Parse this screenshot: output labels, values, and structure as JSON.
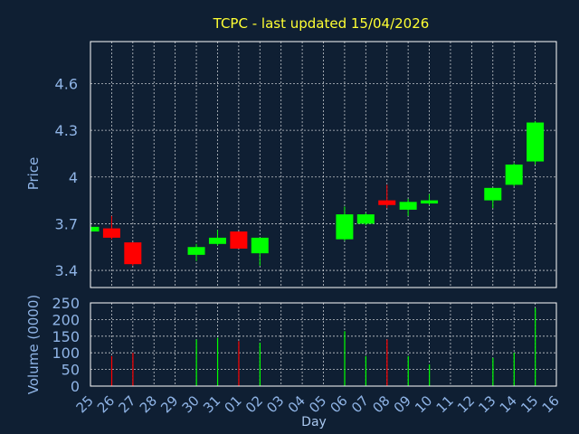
{
  "chart_data": {
    "type": "candlestick",
    "title": "TCPC - last updated 15/04/2026",
    "xlabel": "Day",
    "colors": {
      "background": "#0f1f33",
      "plot_border": "#ffffff",
      "grid": "#ffffff",
      "up": "#00ff00",
      "down": "#ff0000",
      "title": "#ffff33",
      "axis_text": "#8fb4e6"
    },
    "x_ticks": [
      "25",
      "26",
      "27",
      "28",
      "29",
      "30",
      "31",
      "01",
      "02",
      "03",
      "04",
      "05",
      "06",
      "07",
      "08",
      "09",
      "10",
      "11",
      "12",
      "13",
      "14",
      "15",
      "16"
    ],
    "price_panel": {
      "ylabel": "Price",
      "ylim": [
        3.29,
        4.87
      ],
      "y_ticks": [
        "3.4",
        "3.7",
        "4",
        "4.3",
        "4.6"
      ],
      "y_tick_values": [
        3.4,
        3.7,
        4.0,
        4.3,
        4.6
      ]
    },
    "volume_panel": {
      "ylabel": "Volume (0000)",
      "ylim": [
        0,
        250
      ],
      "y_ticks": [
        "0",
        "50",
        "100",
        "150",
        "200",
        "250"
      ],
      "y_tick_values": [
        0,
        50,
        100,
        150,
        200,
        250
      ]
    },
    "candles": [
      {
        "day": "25",
        "open": 3.65,
        "high": 3.68,
        "low": 3.64,
        "close": 3.68,
        "volume": 0
      },
      {
        "day": "26",
        "open": 3.67,
        "high": 3.75,
        "low": 3.6,
        "close": 3.61,
        "volume": 90
      },
      {
        "day": "27",
        "open": 3.58,
        "high": 3.58,
        "low": 3.43,
        "close": 3.44,
        "volume": 100
      },
      {
        "day": "30",
        "open": 3.5,
        "high": 3.57,
        "low": 3.46,
        "close": 3.55,
        "volume": 140
      },
      {
        "day": "31",
        "open": 3.57,
        "high": 3.66,
        "low": 3.56,
        "close": 3.61,
        "volume": 145
      },
      {
        "day": "01",
        "open": 3.65,
        "high": 3.65,
        "low": 3.54,
        "close": 3.54,
        "volume": 135
      },
      {
        "day": "02",
        "open": 3.51,
        "high": 3.61,
        "low": 3.43,
        "close": 3.61,
        "volume": 130
      },
      {
        "day": "06",
        "open": 3.6,
        "high": 3.81,
        "low": 3.59,
        "close": 3.76,
        "volume": 165
      },
      {
        "day": "07",
        "open": 3.7,
        "high": 3.77,
        "low": 3.69,
        "close": 3.76,
        "volume": 90
      },
      {
        "day": "08",
        "open": 3.85,
        "high": 3.95,
        "low": 3.8,
        "close": 3.82,
        "volume": 140
      },
      {
        "day": "09",
        "open": 3.79,
        "high": 3.86,
        "low": 3.75,
        "close": 3.84,
        "volume": 90
      },
      {
        "day": "10",
        "open": 3.83,
        "high": 3.89,
        "low": 3.82,
        "close": 3.85,
        "volume": 65
      },
      {
        "day": "13",
        "open": 3.85,
        "high": 3.93,
        "low": 3.8,
        "close": 3.93,
        "volume": 85
      },
      {
        "day": "14",
        "open": 3.95,
        "high": 4.09,
        "low": 3.94,
        "close": 4.08,
        "volume": 100
      },
      {
        "day": "15",
        "open": 4.1,
        "high": 4.36,
        "low": 4.08,
        "close": 4.35,
        "volume": 235
      }
    ]
  }
}
